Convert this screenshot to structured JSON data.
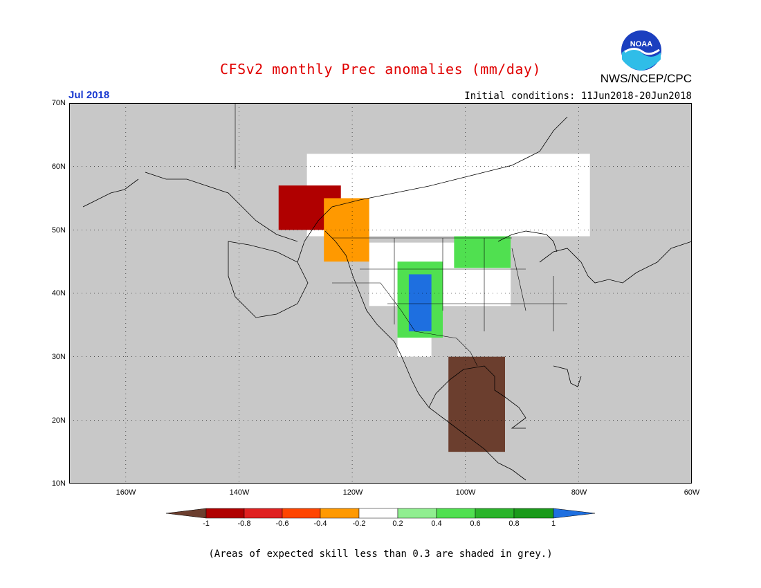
{
  "title": "CFSv2 monthly Prec anomalies (mm/day)",
  "organization": "NWS/NCEP/CPC",
  "logo_text": "NOAA",
  "valid_month": "Jul 2018",
  "initial_conditions": "Initial conditions: 11Jun2018-20Jun2018",
  "lat_labels": [
    "70N",
    "60N",
    "50N",
    "40N",
    "30N",
    "20N",
    "10N"
  ],
  "lon_labels": [
    "160W",
    "140W",
    "120W",
    "100W",
    "80W",
    "60W"
  ],
  "colorbar": {
    "ticks": [
      "-1",
      "-0.8",
      "-0.6",
      "-0.4",
      "-0.2",
      "0.2",
      "0.4",
      "0.6",
      "0.8",
      "1"
    ],
    "colors": [
      "#6b3e2e",
      "#b00000",
      "#e02020",
      "#ff4500",
      "#ff9900",
      "#ffffff",
      "#90ee90",
      "#50e050",
      "#2ab42a",
      "#1a9a1a",
      "#1e6fe0"
    ]
  },
  "footnote": "(Areas of expected skill less than 0.3 are shaded in grey.)",
  "map": {
    "extent": {
      "lon": [
        -170,
        -60
      ],
      "lat": [
        10,
        70
      ]
    },
    "background_color": "#c8c8c8",
    "regions": [
      {
        "class": "white",
        "lat": [
          49,
          62
        ],
        "lon": [
          -128,
          -78
        ]
      },
      {
        "class": "white",
        "lat": [
          38,
          48
        ],
        "lon": [
          -117,
          -92
        ]
      },
      {
        "class": "white",
        "lat": [
          30,
          40
        ],
        "lon": [
          -112,
          -106
        ]
      },
      {
        "class": "brown",
        "lat": [
          15,
          30
        ],
        "lon": [
          -103,
          -93
        ]
      },
      {
        "class": "red",
        "lat": [
          50,
          57
        ],
        "lon": [
          -133,
          -122
        ]
      },
      {
        "class": "orange",
        "lat": [
          45,
          55
        ],
        "lon": [
          -125,
          -117
        ]
      },
      {
        "class": "green",
        "lat": [
          33,
          45
        ],
        "lon": [
          -112,
          -104
        ]
      },
      {
        "class": "blue",
        "lat": [
          34,
          43
        ],
        "lon": [
          -110,
          -106
        ]
      },
      {
        "class": "green",
        "lat": [
          44,
          49
        ],
        "lon": [
          -102,
          -92
        ]
      }
    ]
  }
}
